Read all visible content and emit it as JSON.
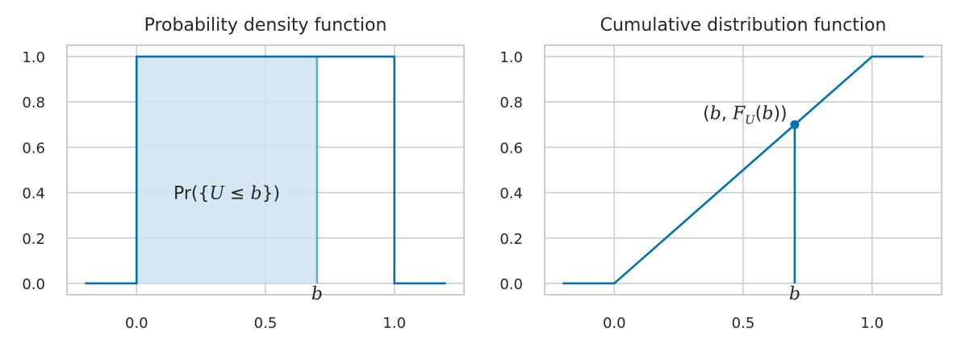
{
  "colors": {
    "line": "#0072b2",
    "fill": "#cde3f0",
    "grid": "#cccccc",
    "frame": "#cccccc",
    "text": "#262626"
  },
  "chart_data": [
    {
      "type": "line",
      "title": "Probability density function",
      "xlim": [
        -0.27,
        1.27
      ],
      "ylim": [
        -0.05,
        1.05
      ],
      "xticks": [
        0.0,
        0.5,
        1.0
      ],
      "yticks": [
        0.0,
        0.2,
        0.4,
        0.6,
        0.8,
        1.0
      ],
      "xtick_labels": [
        "0.0",
        "0.5",
        "1.0"
      ],
      "ytick_labels": [
        "0.0",
        "0.2",
        "0.4",
        "0.6",
        "0.8",
        "1.0"
      ],
      "grid": true,
      "series": [
        {
          "x": [
            -0.2,
            0.0,
            0.0,
            1.0,
            1.0,
            1.2
          ],
          "y": [
            0.0,
            0.0,
            1.0,
            1.0,
            0.0,
            0.0
          ]
        }
      ],
      "shaded_region": {
        "x_start": 0.0,
        "x_end": 0.7,
        "height": 1.0
      },
      "b": 0.7,
      "b_label": "b",
      "annotation": {
        "text": "Pr({U ≤ b})",
        "prefix": "Pr({",
        "var": "U",
        "op": " ≤ ",
        "var2": "b",
        "suffix": "})",
        "x": 0.35,
        "y": 0.4
      }
    },
    {
      "type": "line",
      "title": "Cumulative distribution function",
      "xlim": [
        -0.27,
        1.27
      ],
      "ylim": [
        -0.05,
        1.05
      ],
      "xticks": [
        0.0,
        0.5,
        1.0
      ],
      "yticks": [
        0.0,
        0.2,
        0.4,
        0.6,
        0.8,
        1.0
      ],
      "xtick_labels": [
        "0.0",
        "0.5",
        "1.0"
      ],
      "ytick_labels": [
        "0.0",
        "0.2",
        "0.4",
        "0.6",
        "0.8",
        "1.0"
      ],
      "grid": true,
      "series": [
        {
          "x": [
            -0.2,
            0.0,
            1.0,
            1.2
          ],
          "y": [
            0.0,
            0.0,
            1.0,
            1.0
          ]
        }
      ],
      "point": {
        "x": 0.7,
        "y": 0.7
      },
      "b": 0.7,
      "b_label": "b",
      "annotation": {
        "text": "(b, F_U(b))",
        "open": "(",
        "b": "b",
        "comma": ", ",
        "F": "F",
        "sub": "U",
        "inner_open": "(",
        "inner_b": "b",
        "close": "))",
        "x": 0.52,
        "y": 0.7
      }
    }
  ]
}
